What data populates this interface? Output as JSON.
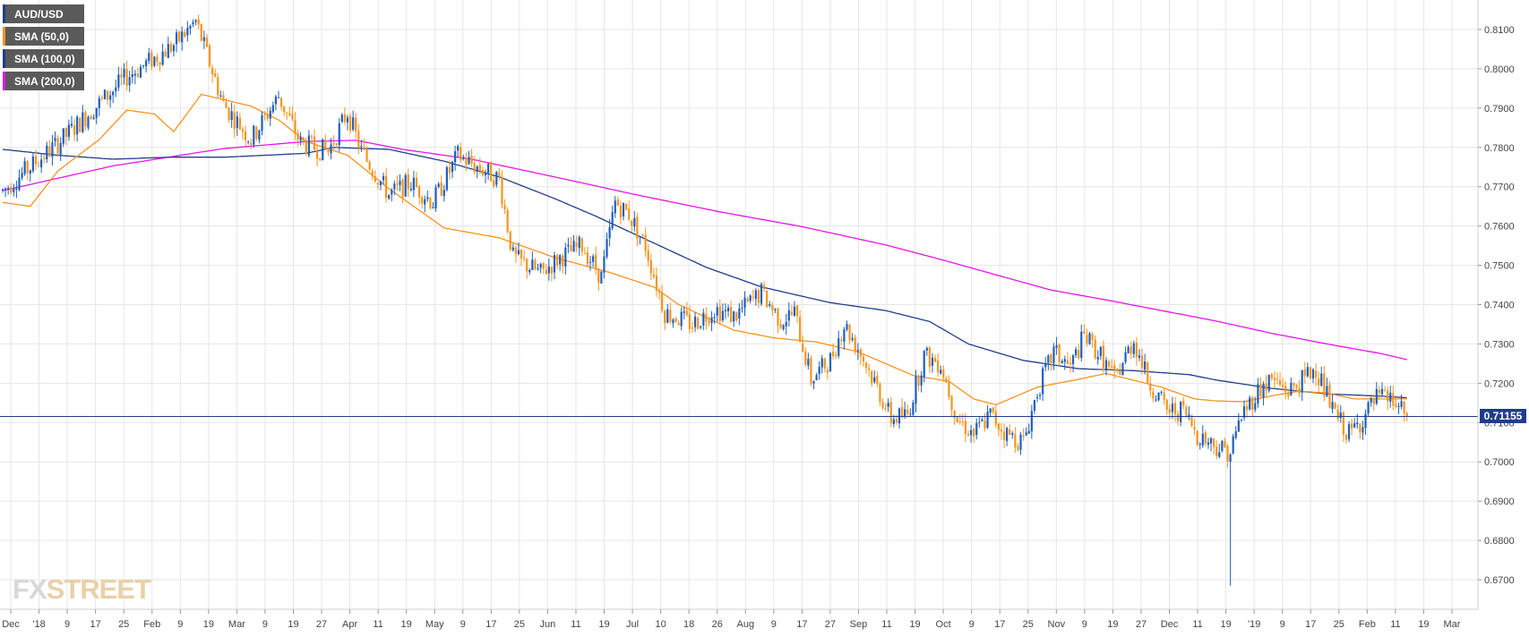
{
  "legend": [
    {
      "label": "AUD/USD",
      "color": "#1f3e8a"
    },
    {
      "label": "SMA (50,0)",
      "color": "#f7941d"
    },
    {
      "label": "SMA (100,0)",
      "color": "#1f3e8a"
    },
    {
      "label": "SMA (200,0)",
      "color": "#e614e6"
    }
  ],
  "watermark": {
    "part1": "FX",
    "part2": "STREET"
  },
  "last_price_label": "0.71155",
  "colors": {
    "bull": "#1f5fbf",
    "bear": "#f7941d",
    "sma50": "#f7941d",
    "sma100": "#1f3e8a",
    "sma200": "#e614e6",
    "grid": "#e6e6e6"
  },
  "chart_data": {
    "type": "candlestick",
    "title": "",
    "series_name": "AUD/USD",
    "ylim": [
      0.6625,
      0.8175
    ],
    "y_ticks": [
      "0.6700",
      "0.6800",
      "0.6900",
      "0.7000",
      "0.7100",
      "0.7200",
      "0.7300",
      "0.7400",
      "0.7500",
      "0.7600",
      "0.7700",
      "0.7800",
      "0.7900",
      "0.8000",
      "0.8100"
    ],
    "x_ticks": [
      "Dec",
      "'18",
      "9",
      "17",
      "25",
      "Feb",
      "9",
      "19",
      "Mar",
      "9",
      "19",
      "27",
      "Apr",
      "11",
      "19",
      "May",
      "9",
      "17",
      "25",
      "Jun",
      "11",
      "19",
      "Jul",
      "10",
      "18",
      "26",
      "Aug",
      "9",
      "17",
      "27",
      "Sep",
      "11",
      "19",
      "Oct",
      "9",
      "17",
      "25",
      "Nov",
      "9",
      "19",
      "27",
      "Dec",
      "11",
      "19",
      "'19",
      "9",
      "17",
      "25",
      "Feb",
      "11",
      "19",
      "Mar"
    ],
    "last_price": 0.71155,
    "price_path": [
      [
        0,
        0.769
      ],
      [
        20,
        0.781
      ],
      [
        45,
        0.798
      ],
      [
        62,
        0.806
      ],
      [
        70,
        0.812
      ],
      [
        80,
        0.791
      ],
      [
        90,
        0.782
      ],
      [
        100,
        0.793
      ],
      [
        108,
        0.781
      ],
      [
        118,
        0.779
      ],
      [
        125,
        0.789
      ],
      [
        130,
        0.779
      ],
      [
        140,
        0.768
      ],
      [
        148,
        0.771
      ],
      [
        156,
        0.766
      ],
      [
        165,
        0.778
      ],
      [
        172,
        0.775
      ],
      [
        180,
        0.772
      ],
      [
        185,
        0.752
      ],
      [
        195,
        0.748
      ],
      [
        202,
        0.752
      ],
      [
        210,
        0.755
      ],
      [
        217,
        0.747
      ],
      [
        222,
        0.766
      ],
      [
        227,
        0.763
      ],
      [
        233,
        0.755
      ],
      [
        240,
        0.738
      ],
      [
        250,
        0.735
      ],
      [
        258,
        0.739
      ],
      [
        265,
        0.737
      ],
      [
        275,
        0.743
      ],
      [
        282,
        0.736
      ],
      [
        287,
        0.738
      ],
      [
        293,
        0.721
      ],
      [
        300,
        0.726
      ],
      [
        305,
        0.735
      ],
      [
        310,
        0.729
      ],
      [
        317,
        0.719
      ],
      [
        322,
        0.711
      ],
      [
        328,
        0.712
      ],
      [
        334,
        0.727
      ],
      [
        340,
        0.725
      ],
      [
        346,
        0.711
      ],
      [
        352,
        0.707
      ],
      [
        358,
        0.712
      ],
      [
        364,
        0.707
      ],
      [
        370,
        0.705
      ],
      [
        375,
        0.718
      ],
      [
        381,
        0.728
      ],
      [
        387,
        0.724
      ],
      [
        392,
        0.732
      ],
      [
        398,
        0.727
      ],
      [
        403,
        0.721
      ],
      [
        410,
        0.731
      ],
      [
        415,
        0.721
      ],
      [
        422,
        0.713
      ],
      [
        428,
        0.713
      ],
      [
        433,
        0.707
      ],
      [
        440,
        0.704
      ],
      [
        445,
        0.7025
      ],
      [
        449,
        0.712
      ],
      [
        455,
        0.718
      ],
      [
        460,
        0.721
      ],
      [
        466,
        0.718
      ],
      [
        470,
        0.72
      ],
      [
        476,
        0.724
      ],
      [
        482,
        0.713
      ],
      [
        488,
        0.707
      ],
      [
        493,
        0.711
      ],
      [
        498,
        0.716
      ],
      [
        503,
        0.716
      ],
      [
        509,
        0.7115
      ]
    ],
    "sma50": [
      [
        0,
        0.766
      ],
      [
        10,
        0.765
      ],
      [
        20,
        0.774
      ],
      [
        35,
        0.782
      ],
      [
        45,
        0.7895
      ],
      [
        55,
        0.7885
      ],
      [
        62,
        0.784
      ],
      [
        72,
        0.7935
      ],
      [
        90,
        0.7905
      ],
      [
        100,
        0.787
      ],
      [
        110,
        0.7815
      ],
      [
        125,
        0.778
      ],
      [
        140,
        0.7695
      ],
      [
        160,
        0.7595
      ],
      [
        180,
        0.757
      ],
      [
        200,
        0.752
      ],
      [
        220,
        0.7482
      ],
      [
        236,
        0.7445
      ],
      [
        245,
        0.74
      ],
      [
        265,
        0.7335
      ],
      [
        280,
        0.7315
      ],
      [
        295,
        0.7305
      ],
      [
        310,
        0.728
      ],
      [
        330,
        0.722
      ],
      [
        343,
        0.7205
      ],
      [
        352,
        0.716
      ],
      [
        360,
        0.7145
      ],
      [
        375,
        0.719
      ],
      [
        390,
        0.721
      ],
      [
        400,
        0.7225
      ],
      [
        420,
        0.719
      ],
      [
        432,
        0.716
      ],
      [
        440,
        0.7155
      ],
      [
        450,
        0.7153
      ],
      [
        460,
        0.7168
      ],
      [
        470,
        0.718
      ],
      [
        480,
        0.7175
      ],
      [
        490,
        0.716
      ],
      [
        500,
        0.716
      ],
      [
        509,
        0.716
      ]
    ],
    "sma100": [
      [
        0,
        0.7795
      ],
      [
        20,
        0.778
      ],
      [
        40,
        0.777
      ],
      [
        60,
        0.7775
      ],
      [
        80,
        0.7775
      ],
      [
        95,
        0.778
      ],
      [
        110,
        0.7785
      ],
      [
        120,
        0.78
      ],
      [
        140,
        0.7795
      ],
      [
        160,
        0.7765
      ],
      [
        180,
        0.7725
      ],
      [
        200,
        0.767
      ],
      [
        215,
        0.7625
      ],
      [
        235,
        0.756
      ],
      [
        255,
        0.7495
      ],
      [
        275,
        0.7445
      ],
      [
        300,
        0.7405
      ],
      [
        320,
        0.7385
      ],
      [
        336,
        0.7357
      ],
      [
        350,
        0.73
      ],
      [
        370,
        0.7258
      ],
      [
        390,
        0.7237
      ],
      [
        410,
        0.7232
      ],
      [
        430,
        0.7222
      ],
      [
        440,
        0.7208
      ],
      [
        460,
        0.7187
      ],
      [
        480,
        0.7173
      ],
      [
        500,
        0.7167
      ],
      [
        509,
        0.7163
      ]
    ],
    "sma200": [
      [
        0,
        0.769
      ],
      [
        40,
        0.7753
      ],
      [
        80,
        0.7797
      ],
      [
        110,
        0.7815
      ],
      [
        128,
        0.7818
      ],
      [
        145,
        0.7795
      ],
      [
        170,
        0.777
      ],
      [
        200,
        0.7725
      ],
      [
        230,
        0.7679
      ],
      [
        260,
        0.7636
      ],
      [
        290,
        0.7598
      ],
      [
        320,
        0.7552
      ],
      [
        340,
        0.7515
      ],
      [
        360,
        0.7476
      ],
      [
        380,
        0.7437
      ],
      [
        400,
        0.7412
      ],
      [
        420,
        0.7385
      ],
      [
        440,
        0.7358
      ],
      [
        460,
        0.7327
      ],
      [
        480,
        0.73
      ],
      [
        500,
        0.7275
      ],
      [
        509,
        0.726
      ]
    ],
    "annotations": []
  }
}
